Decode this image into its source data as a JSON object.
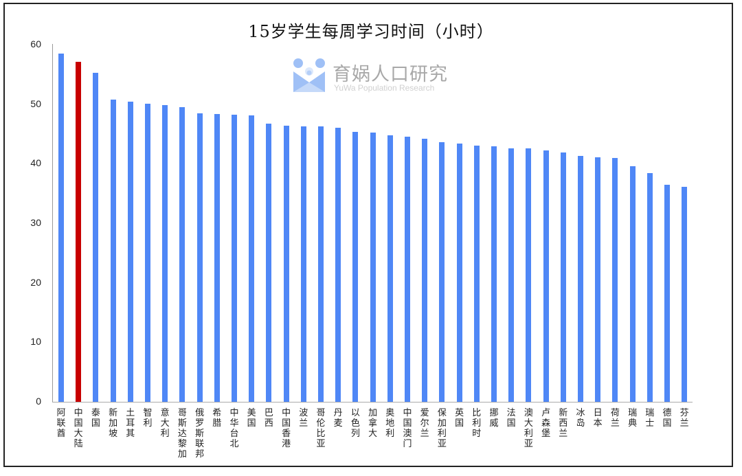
{
  "chart_data": {
    "type": "bar",
    "title": "15岁学生每周学习时间（小时）",
    "xlabel": "",
    "ylabel": "",
    "ylim": [
      0,
      60
    ],
    "yticks": [
      0,
      10,
      20,
      30,
      40,
      50,
      60
    ],
    "grid": false,
    "legend": null,
    "highlight_category": "中国大陆",
    "colors": {
      "default": "#4f87f6",
      "highlight": "#c80000"
    },
    "categories": [
      "阿联酋",
      "中国大陆",
      "泰国",
      "新加坡",
      "土耳其",
      "智利",
      "意大利",
      "哥斯达黎加",
      "俄罗斯联邦",
      "希腊",
      "中华台北",
      "美国",
      "巴西",
      "中国香港",
      "波兰",
      "哥伦比亚",
      "丹麦",
      "以色列",
      "加拿大",
      "奥地利",
      "中国澳门",
      "爱尔兰",
      "保加利亚",
      "英国",
      "比利时",
      "挪威",
      "法国",
      "澳大利亚",
      "卢森堡",
      "新西兰",
      "冰岛",
      "日本",
      "荷兰",
      "瑞典",
      "瑞士",
      "德国",
      "芬兰"
    ],
    "values": [
      58.5,
      57.1,
      55.3,
      50.8,
      50.4,
      50.1,
      49.8,
      49.5,
      48.5,
      48.3,
      48.2,
      48.1,
      46.7,
      46.4,
      46.3,
      46.3,
      46.0,
      45.4,
      45.2,
      44.8,
      44.5,
      44.2,
      43.6,
      43.4,
      43.0,
      42.9,
      42.6,
      42.6,
      42.2,
      41.9,
      41.3,
      41.1,
      41.0,
      39.6,
      38.4,
      36.5,
      36.1
    ]
  },
  "watermark": {
    "name_cn": "育娲人口研究",
    "name_en": "YuWa Population Research"
  }
}
